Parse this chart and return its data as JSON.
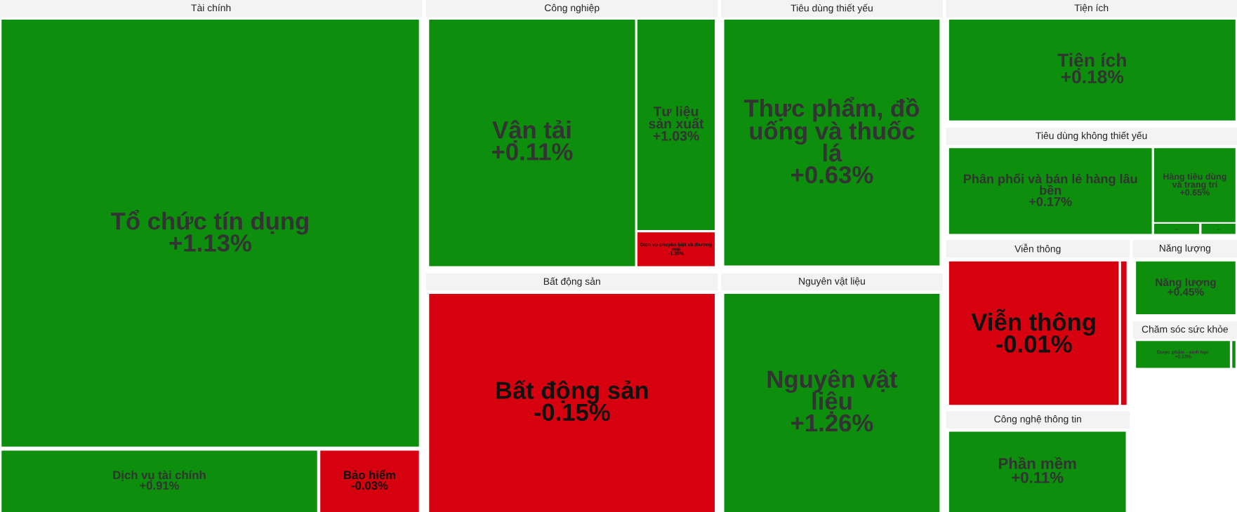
{
  "chart_data": {
    "type": "other",
    "categories": [
      "Tổ chức tín dụng",
      "Dịch vụ tài chính",
      "Bảo hiểm",
      "Vận tải",
      "Tư liệu sản xuất",
      "Dịch vụ chuyên biệt và thương mại",
      "Thực phẩm, đồ uống và thuốc lá",
      "Tiện ích",
      "Bất động sản",
      "Nguyên vật liệu",
      "Phân phối và bán lẻ hàng lâu bền",
      "Hàng tiêu dùng và trang trí",
      "...",
      "...",
      "Viễn thông",
      null,
      "Năng lượng",
      "Dược phẩm - sinh học",
      null,
      "Phần mềm"
    ],
    "values": [
      1.13,
      0.91,
      -0.03,
      0.11,
      1.03,
      -1.35,
      0.63,
      0.18,
      -0.15,
      1.26,
      0.17,
      0.65,
      null,
      null,
      -0.01,
      null,
      0.45,
      0.13,
      null,
      0.11
    ],
    "value_labels": [
      "+1.13%",
      "+0.91%",
      "-0.03%",
      "+0.11%",
      "+1.03%",
      "-1.35%",
      "+0.63%",
      "+0.18%",
      "-0.15%",
      "+1.26%",
      "+0.17%",
      "+0.65%",
      null,
      null,
      "-0.01%",
      null,
      "+0.45%",
      "+0.13%",
      null,
      "+0.11%"
    ],
    "colors": [
      "#0d8e0d",
      "#0d8e0d",
      "#d7000f",
      "#0d8e0d",
      "#0d8e0d",
      "#d7000f",
      "#0d8e0d",
      "#0d8e0d",
      "#d7000f",
      "#0d8e0d",
      "#0d8e0d",
      "#0d8e0d",
      "#0d8e0d",
      "#0d8e0d",
      "#d7000f",
      "#d7000f",
      "#0d8e0d",
      "#0d8e0d",
      "#0d8e0d",
      "#0d8e0d"
    ],
    "annotations": [
      "Tài chính",
      "Công nghiệp",
      "Tiêu dùng thiết yếu",
      "Tiện ích",
      "Bất động sản",
      "Nguyên vật liệu",
      "Tiêu dùng không thiết yếu",
      "Viễn thông",
      "Năng lượng",
      "Chăm sóc sức khỏe",
      "Công nghệ thông tin"
    ]
  }
}
